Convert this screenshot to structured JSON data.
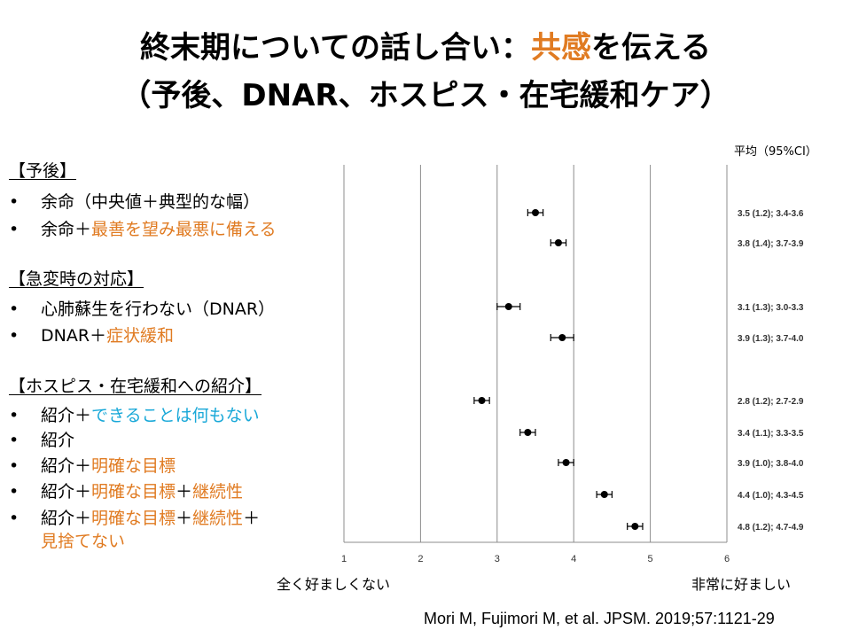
{
  "title": {
    "line1_a": "終末期についての話し合い：",
    "line1_b": "共感",
    "line1_c": "を伝える",
    "line2": "（予後、DNAR、ホスピス・在宅緩和ケア）"
  },
  "left": {
    "sec1_heading": "【予後】",
    "sec1_item1": "余命（中央値＋典型的な幅）",
    "sec1_item2_a": "余命＋",
    "sec1_item2_b": "最善を望み最悪に備える",
    "sec2_heading": "【急変時の対応】",
    "sec2_item1": "心肺蘇生を行わない（DNAR）",
    "sec2_item2_a": "DNAR＋",
    "sec2_item2_b": "症状緩和",
    "sec3_heading": "【ホスピス・在宅緩和への紹介】",
    "sec3_item1_a": "紹介＋",
    "sec3_item1_b": "できることは何もない",
    "sec3_item2": "紹介",
    "sec3_item3_a": "紹介＋",
    "sec3_item3_b": "明確な目標",
    "sec3_item4_a": "紹介＋",
    "sec3_item4_b": "明確な目標",
    "sec3_item4_c": "＋",
    "sec3_item4_d": "継続性",
    "sec3_item5_a": "紹介＋",
    "sec3_item5_b": "明確な目標",
    "sec3_item5_c": "＋",
    "sec3_item5_d": "継続性",
    "sec3_item5_e": "＋",
    "sec3_item5_f": "見捨てない",
    "bullet": "•"
  },
  "ci_header": "平均（95%CI）",
  "scale_left": "全く好ましくない",
  "scale_right": "非常に好ましい",
  "citation": "Mori M, Fujimori M, et al. JPSM. 2019;57:1121-29",
  "colors": {
    "accent": "#e07b22",
    "blue": "#18a8d8",
    "grid": "#8c8c8c"
  },
  "chart_data": {
    "type": "scatter",
    "xlim": [
      1,
      6
    ],
    "xticks": [
      "1",
      "2",
      "3",
      "4",
      "5",
      "6"
    ],
    "grid": true,
    "points": [
      {
        "mean": 3.5,
        "lo": 3.4,
        "hi": 3.6,
        "label": "3.5 (1.2); 3.4-3.6"
      },
      {
        "mean": 3.8,
        "lo": 3.7,
        "hi": 3.9,
        "label": "3.8 (1.4); 3.7-3.9"
      },
      {
        "mean": 3.15,
        "lo": 3.0,
        "hi": 3.3,
        "label": "3.1 (1.3); 3.0-3.3"
      },
      {
        "mean": 3.85,
        "lo": 3.7,
        "hi": 4.0,
        "label": "3.9 (1.3); 3.7-4.0"
      },
      {
        "mean": 2.8,
        "lo": 2.7,
        "hi": 2.9,
        "label": "2.8 (1.2); 2.7-2.9"
      },
      {
        "mean": 3.4,
        "lo": 3.3,
        "hi": 3.5,
        "label": "3.4 (1.1); 3.3-3.5"
      },
      {
        "mean": 3.9,
        "lo": 3.8,
        "hi": 4.0,
        "label": "3.9 (1.0); 3.8-4.0"
      },
      {
        "mean": 4.4,
        "lo": 4.3,
        "hi": 4.5,
        "label": "4.4 (1.0); 4.3-4.5"
      },
      {
        "mean": 4.8,
        "lo": 4.7,
        "hi": 4.9,
        "label": "4.8 (1.2); 4.7-4.9"
      }
    ]
  }
}
